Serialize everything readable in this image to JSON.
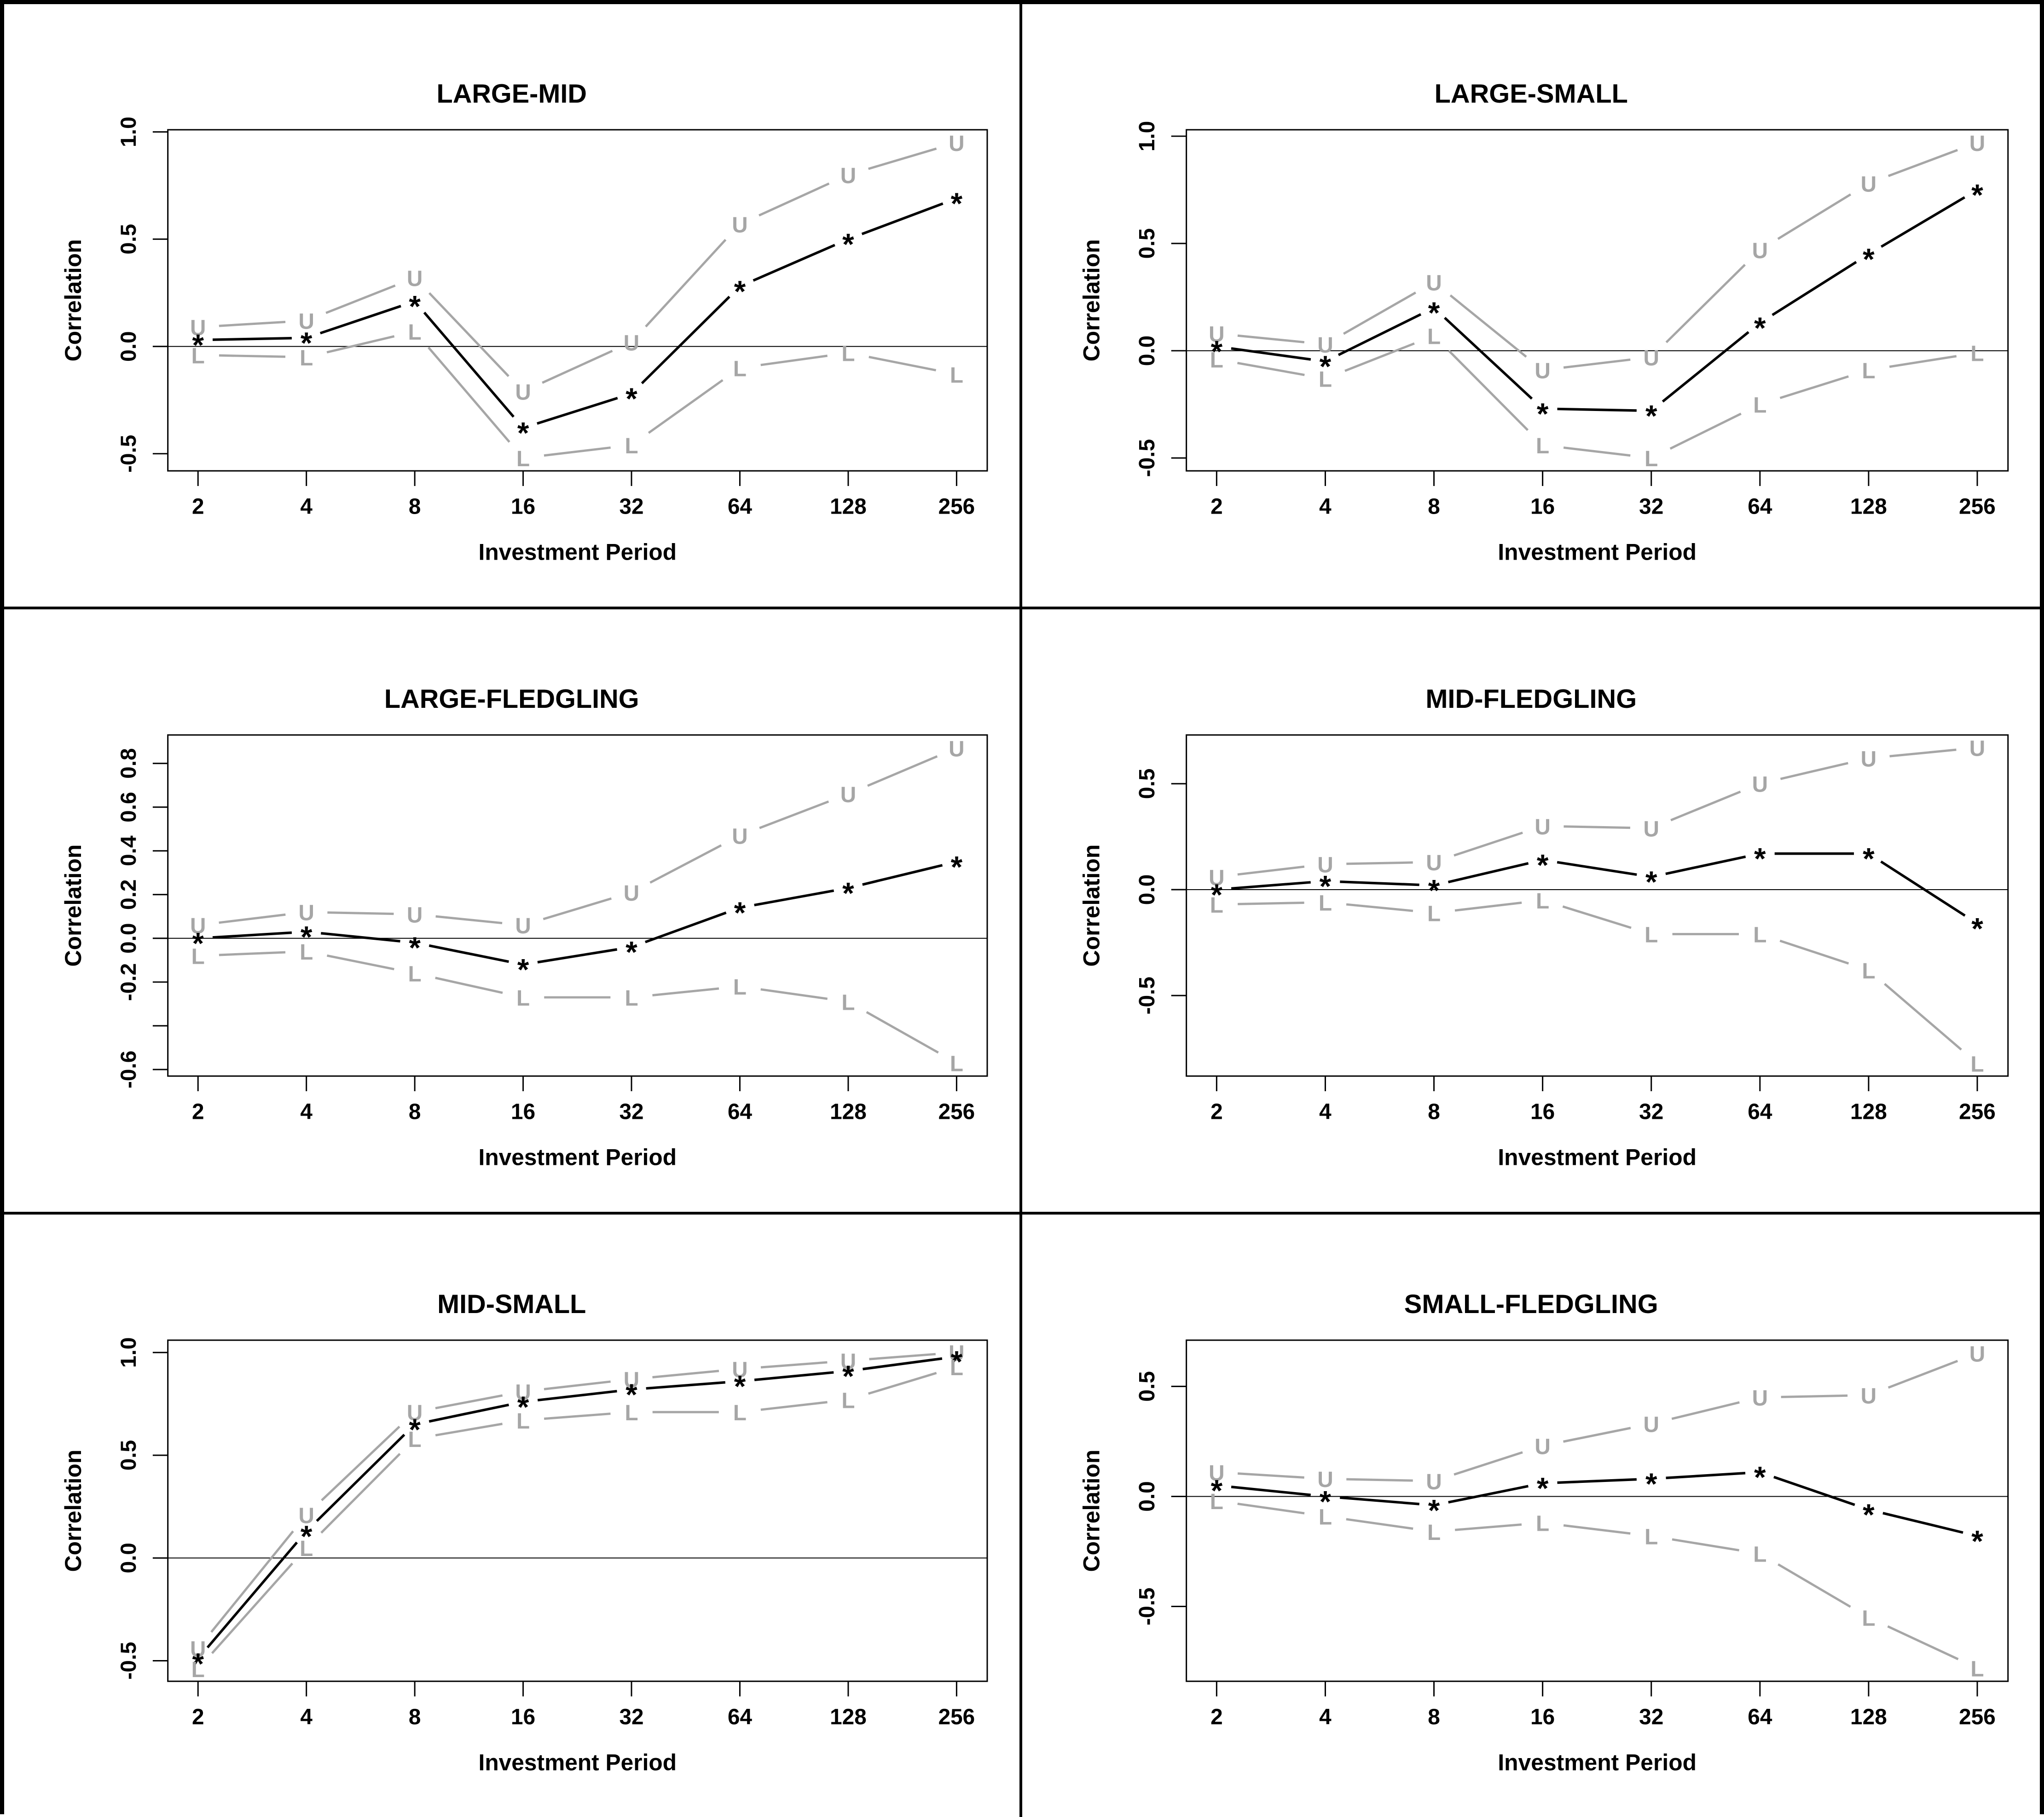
{
  "figure": {
    "xlabel": "Investment Period",
    "ylabel": "Correlation",
    "x_categories": [
      "2",
      "4",
      "8",
      "16",
      "32",
      "64",
      "128",
      "256"
    ],
    "markers": {
      "upper": "U",
      "mid": "*",
      "lower": "L"
    },
    "colors": {
      "mid_line": "#000000",
      "band_line": "#a6a6a6",
      "band_letter": "#a6a6a6",
      "axis": "#000000",
      "background": "#ffffff"
    }
  },
  "chart_data": [
    {
      "type": "line",
      "title": "LARGE-MID",
      "xlabel": "Investment Period",
      "ylabel": "Correlation",
      "x": [
        2,
        4,
        8,
        16,
        32,
        64,
        128,
        256
      ],
      "x_log_scale": true,
      "ylim": [
        -0.58,
        1.01
      ],
      "yticks": [
        {
          "v": 1.0,
          "label": "1.0"
        },
        {
          "v": 0.5,
          "label": "0.5"
        },
        {
          "v": 0.0,
          "label": "0.0"
        },
        {
          "v": -0.5,
          "label": "-0.5"
        }
      ],
      "zero_line": true,
      "series": [
        {
          "name": "Upper bound (U)",
          "role": "upper",
          "values": [
            0.09,
            0.12,
            0.32,
            -0.21,
            0.02,
            0.57,
            0.8,
            0.95
          ]
        },
        {
          "name": "Correlation (*)",
          "role": "mid",
          "values": [
            0.03,
            0.04,
            0.21,
            -0.38,
            -0.22,
            0.28,
            0.5,
            0.69
          ]
        },
        {
          "name": "Lower bound (L)",
          "role": "lower",
          "values": [
            -0.04,
            -0.05,
            0.07,
            -0.52,
            -0.46,
            -0.1,
            -0.03,
            -0.13
          ]
        }
      ]
    },
    {
      "type": "line",
      "title": "LARGE-SMALL",
      "xlabel": "Investment Period",
      "ylabel": "Correlation",
      "x": [
        2,
        4,
        8,
        16,
        32,
        64,
        128,
        256
      ],
      "x_log_scale": true,
      "ylim": [
        -0.56,
        1.03
      ],
      "yticks": [
        {
          "v": 1.0,
          "label": "1.0"
        },
        {
          "v": 0.5,
          "label": "0.5"
        },
        {
          "v": 0.0,
          "label": "0.0"
        },
        {
          "v": -0.5,
          "label": "-0.5"
        }
      ],
      "zero_line": true,
      "series": [
        {
          "name": "Upper bound (U)",
          "role": "upper",
          "values": [
            0.08,
            0.03,
            0.32,
            -0.09,
            -0.03,
            0.47,
            0.78,
            0.97
          ]
        },
        {
          "name": "Correlation (*)",
          "role": "mid",
          "values": [
            0.02,
            -0.05,
            0.2,
            -0.27,
            -0.28,
            0.13,
            0.45,
            0.75
          ]
        },
        {
          "name": "Lower bound (L)",
          "role": "lower",
          "values": [
            -0.04,
            -0.13,
            0.07,
            -0.44,
            -0.5,
            -0.25,
            -0.09,
            -0.01
          ]
        }
      ]
    },
    {
      "type": "line",
      "title": "LARGE-FLEDGLING",
      "xlabel": "Investment Period",
      "ylabel": "Correlation",
      "x": [
        2,
        4,
        8,
        16,
        32,
        64,
        128,
        256
      ],
      "x_log_scale": true,
      "ylim": [
        -0.63,
        0.93
      ],
      "yticks": [
        {
          "v": 0.8,
          "label": "0.8"
        },
        {
          "v": 0.6,
          "label": "0.6"
        },
        {
          "v": 0.4,
          "label": "0.4"
        },
        {
          "v": 0.2,
          "label": "0.2"
        },
        {
          "v": 0.0,
          "label": "0.0"
        },
        {
          "v": -0.2,
          "label": "-0.2"
        },
        {
          "v": -0.4,
          "label": ""
        },
        {
          "v": -0.6,
          "label": "-0.6"
        }
      ],
      "zero_line": true,
      "series": [
        {
          "name": "Upper bound (U)",
          "role": "upper",
          "values": [
            0.06,
            0.12,
            0.11,
            0.06,
            0.21,
            0.47,
            0.66,
            0.87
          ]
        },
        {
          "name": "Correlation (*)",
          "role": "mid",
          "values": [
            0.0,
            0.03,
            -0.02,
            -0.12,
            -0.04,
            0.14,
            0.23,
            0.35
          ]
        },
        {
          "name": "Lower bound (L)",
          "role": "lower",
          "values": [
            -0.08,
            -0.06,
            -0.16,
            -0.27,
            -0.27,
            -0.22,
            -0.29,
            -0.57
          ]
        }
      ]
    },
    {
      "type": "line",
      "title": "MID-FLEDGLING",
      "xlabel": "Investment Period",
      "ylabel": "Correlation",
      "x": [
        2,
        4,
        8,
        16,
        32,
        64,
        128,
        256
      ],
      "x_log_scale": true,
      "ylim": [
        -0.88,
        0.73
      ],
      "yticks": [
        {
          "v": 0.5,
          "label": "0.5"
        },
        {
          "v": 0.0,
          "label": "0.0"
        },
        {
          "v": -0.5,
          "label": "-0.5"
        }
      ],
      "zero_line": true,
      "series": [
        {
          "name": "Upper bound (U)",
          "role": "upper",
          "values": [
            0.06,
            0.12,
            0.13,
            0.3,
            0.29,
            0.5,
            0.62,
            0.67
          ]
        },
        {
          "name": "Correlation (*)",
          "role": "mid",
          "values": [
            0.0,
            0.04,
            0.02,
            0.14,
            0.06,
            0.17,
            0.17,
            -0.16
          ]
        },
        {
          "name": "Lower bound (L)",
          "role": "lower",
          "values": [
            -0.07,
            -0.06,
            -0.11,
            -0.05,
            -0.21,
            -0.21,
            -0.38,
            -0.82
          ]
        }
      ]
    },
    {
      "type": "line",
      "title": "MID-SMALL",
      "xlabel": "Investment Period",
      "ylabel": "Correlation",
      "x": [
        2,
        4,
        8,
        16,
        32,
        64,
        128,
        256
      ],
      "x_log_scale": true,
      "ylim": [
        -0.6,
        1.06
      ],
      "yticks": [
        {
          "v": 1.0,
          "label": "1.0"
        },
        {
          "v": 0.5,
          "label": "0.5"
        },
        {
          "v": 0.0,
          "label": "0.0"
        },
        {
          "v": -0.5,
          "label": "-0.5"
        }
      ],
      "zero_line": true,
      "series": [
        {
          "name": "Upper bound (U)",
          "role": "upper",
          "values": [
            -0.44,
            0.21,
            0.71,
            0.81,
            0.87,
            0.92,
            0.96,
            1.0
          ]
        },
        {
          "name": "Correlation (*)",
          "role": "mid",
          "values": [
            -0.49,
            0.13,
            0.65,
            0.76,
            0.82,
            0.86,
            0.91,
            0.98
          ]
        },
        {
          "name": "Lower bound (L)",
          "role": "lower",
          "values": [
            -0.54,
            0.05,
            0.58,
            0.67,
            0.71,
            0.71,
            0.77,
            0.93
          ]
        }
      ]
    },
    {
      "type": "line",
      "title": "SMALL-FLEDGLING",
      "xlabel": "Investment Period",
      "ylabel": "Correlation",
      "x": [
        2,
        4,
        8,
        16,
        32,
        64,
        128,
        256
      ],
      "x_log_scale": true,
      "ylim": [
        -0.84,
        0.71
      ],
      "yticks": [
        {
          "v": 0.5,
          "label": "0.5"
        },
        {
          "v": 0.0,
          "label": "0.0"
        },
        {
          "v": -0.5,
          "label": "-0.5"
        }
      ],
      "zero_line": true,
      "series": [
        {
          "name": "Upper bound (U)",
          "role": "upper",
          "values": [
            0.11,
            0.08,
            0.07,
            0.23,
            0.33,
            0.45,
            0.46,
            0.65
          ]
        },
        {
          "name": "Correlation (*)",
          "role": "mid",
          "values": [
            0.05,
            0.0,
            -0.04,
            0.06,
            0.08,
            0.11,
            -0.06,
            -0.18
          ]
        },
        {
          "name": "Lower bound (L)",
          "role": "lower",
          "values": [
            -0.02,
            -0.09,
            -0.16,
            -0.12,
            -0.18,
            -0.26,
            -0.55,
            -0.78
          ]
        }
      ]
    }
  ]
}
